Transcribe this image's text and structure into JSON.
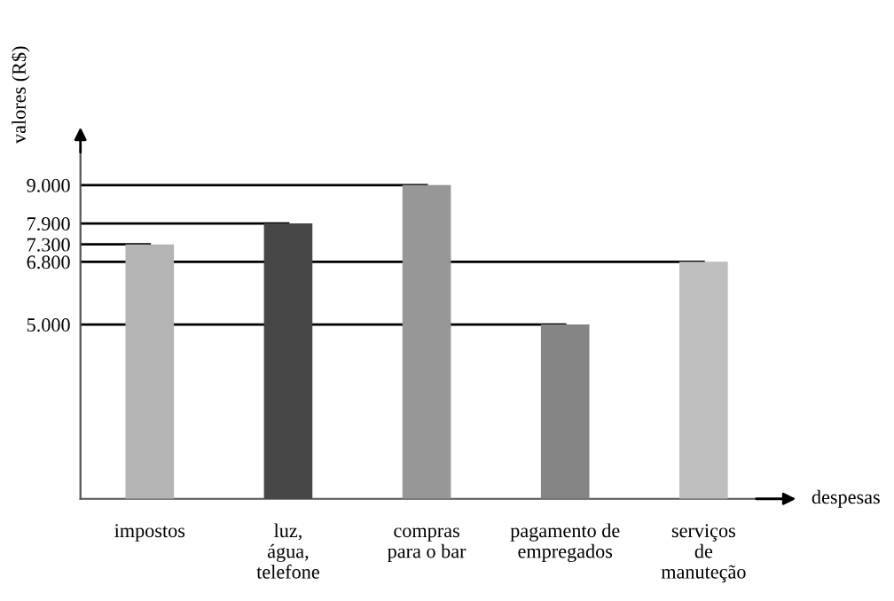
{
  "chart_data": {
    "type": "bar",
    "ylabel": "valores (R$)",
    "xlabel": "despesas",
    "categories": [
      "impostos",
      "luz,\nágua,\ntelefone",
      "compras\npara o bar",
      "pagamento de\nempregados",
      "serviços\nde\nmanuteção"
    ],
    "values": [
      7300,
      7900,
      9000,
      5000,
      6800
    ],
    "colors": [
      "#b4b4b4",
      "#464646",
      "#979797",
      "#858585",
      "#bebebe"
    ],
    "ylim": [
      0,
      10000
    ],
    "yticks": [
      {
        "value": 5000,
        "label": "5.000"
      },
      {
        "value": 6800,
        "label": "6.800"
      },
      {
        "value": 7300,
        "label": "7.300"
      },
      {
        "value": 7900,
        "label": "7.900"
      },
      {
        "value": 9000,
        "label": "9.000"
      }
    ],
    "ref_lines": [
      {
        "axis": "y",
        "value": 9000,
        "color": "#000000"
      },
      {
        "axis": "y",
        "value": 7900,
        "color": "#000000"
      },
      {
        "axis": "y",
        "value": 7300,
        "color": "#000000"
      },
      {
        "axis": "y",
        "value": 6800,
        "color": "#000000"
      },
      {
        "axis": "y",
        "value": 5000,
        "color": "#000000"
      }
    ],
    "grid": false,
    "legend": false
  }
}
